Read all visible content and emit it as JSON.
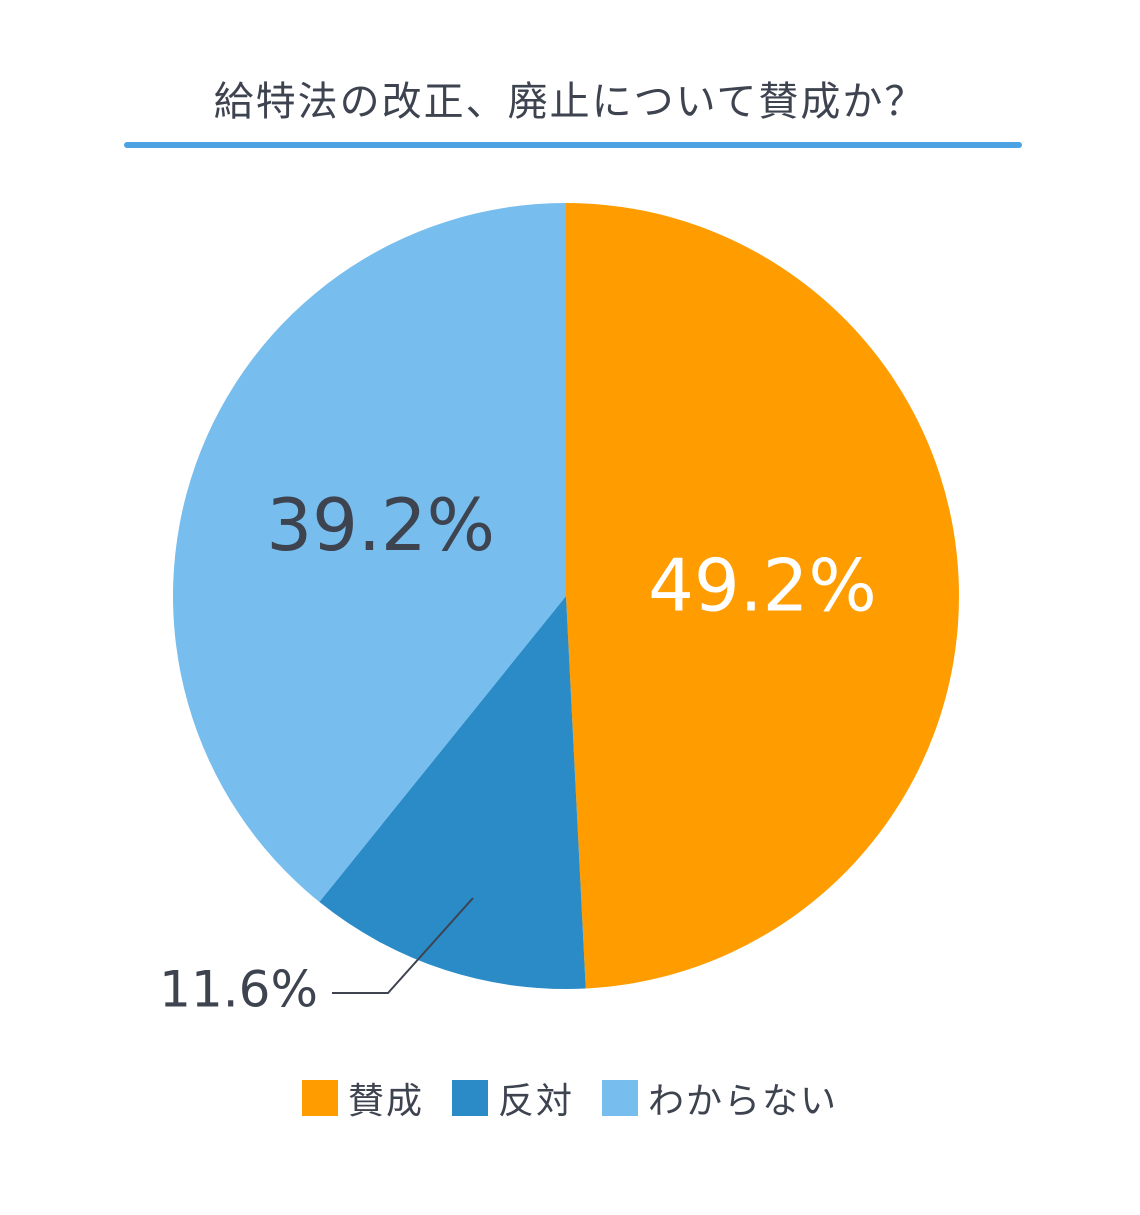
{
  "chart_data": {
    "type": "pie",
    "title": "給特法の改正、廃止について賛成か？",
    "slices": [
      {
        "name": "賛成",
        "value": 49.2,
        "label": "49.2%",
        "color": "#ff9c00",
        "label_color": "#ffffff"
      },
      {
        "name": "反対",
        "value": 11.6,
        "label": "11.6%",
        "color": "#2a8bc7",
        "label_color": "#3e4350"
      },
      {
        "name": "わからない",
        "value": 39.2,
        "label": "39.2%",
        "color": "#77bdee",
        "label_color": "#3e4350"
      }
    ],
    "legend": {
      "placement": "bottom",
      "items": [
        {
          "label": "賛成",
          "color": "#ff9c00"
        },
        {
          "label": "反対",
          "color": "#2a8bc7"
        },
        {
          "label": "わからない",
          "color": "#77bdee"
        }
      ]
    }
  }
}
